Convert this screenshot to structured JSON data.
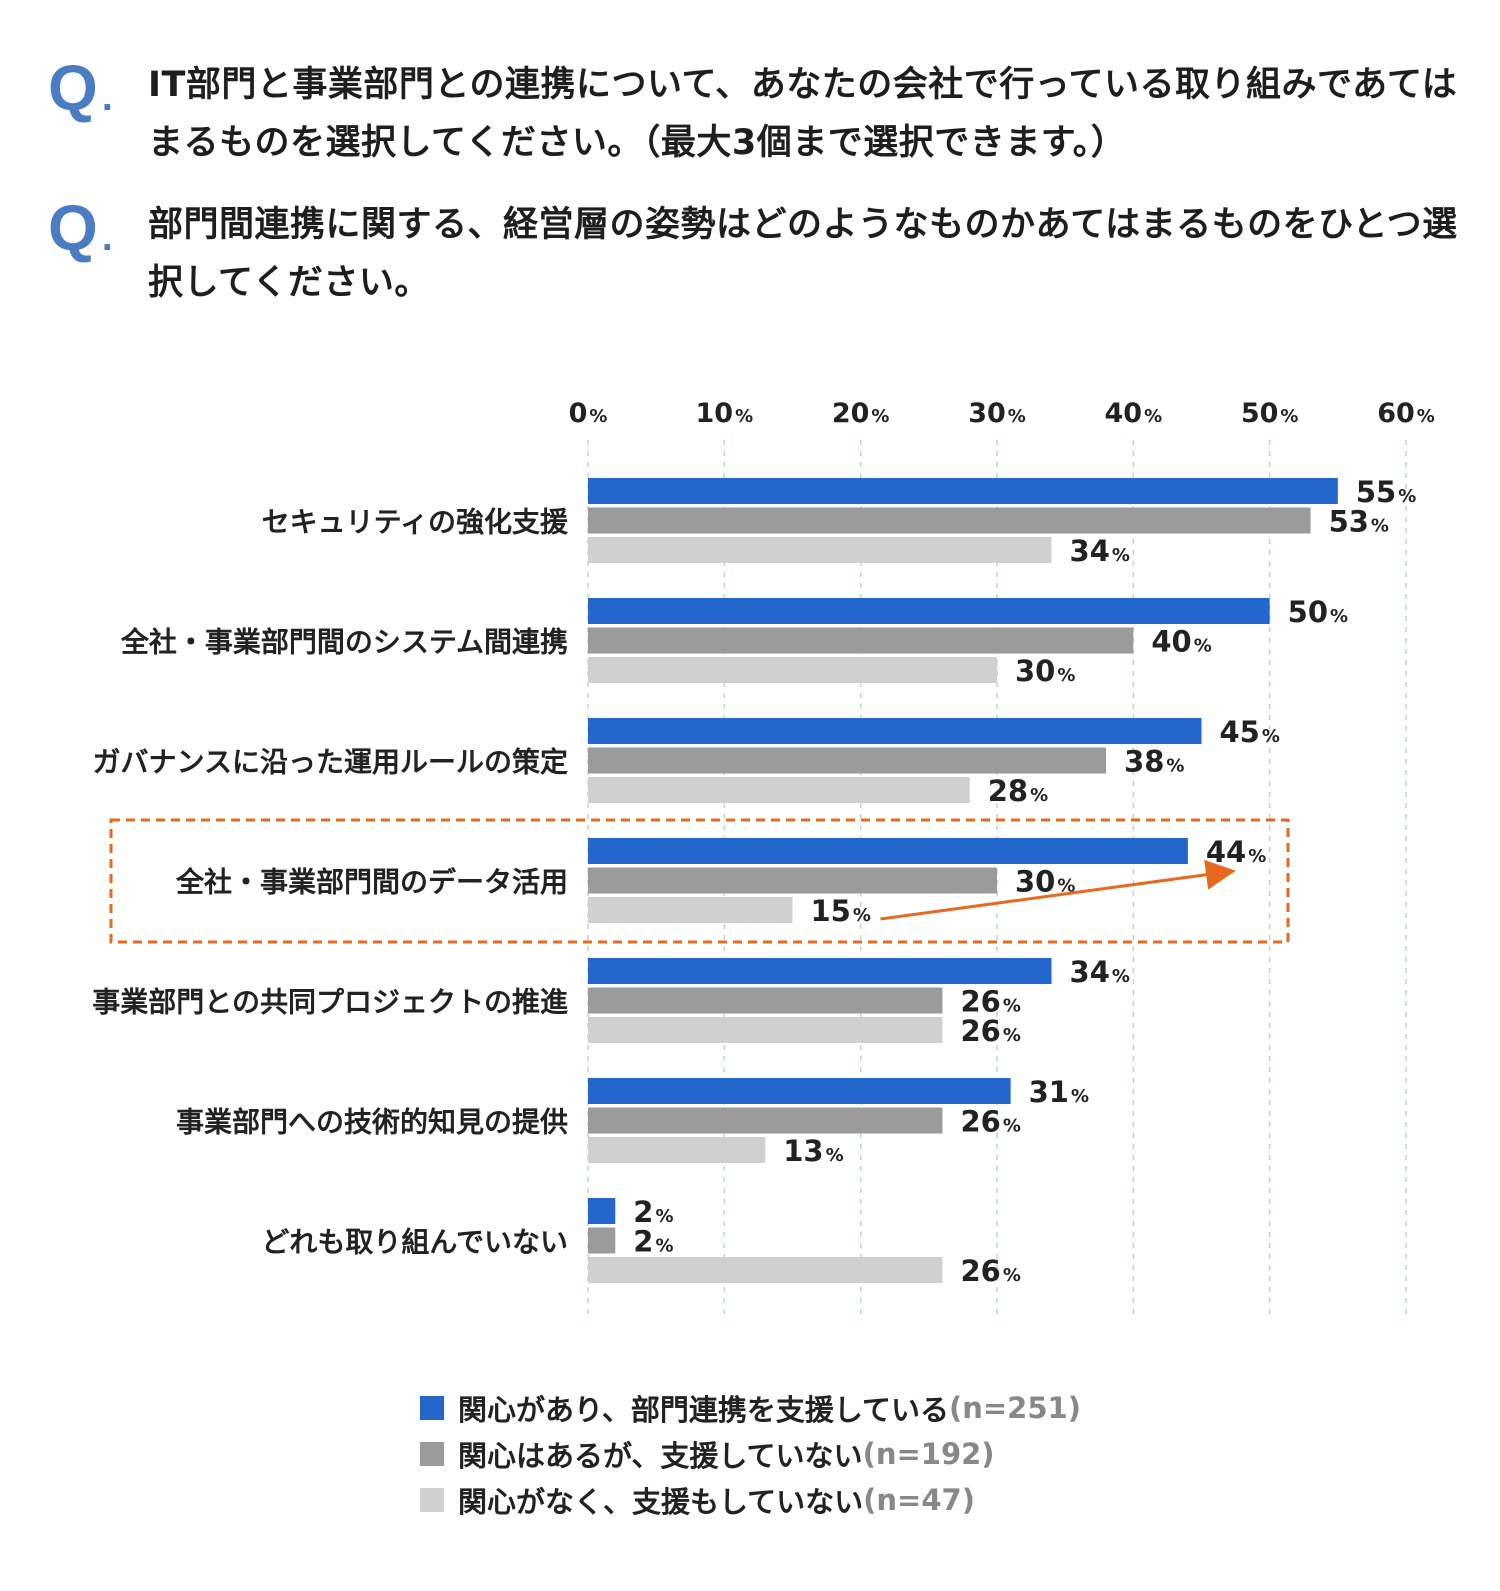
{
  "questions": [
    {
      "mark": "Q",
      "text": "IT部門と事業部門との連携について、あなたの会社で行っている取り組みであてはまるものを選択してください。（最大3個まで選択できます。）"
    },
    {
      "mark": "Q",
      "text": "部門間連携に関する、経営層の姿勢はどのようなものかあてはまるものをひとつ選択してください。"
    }
  ],
  "chart_data": {
    "type": "bar",
    "orientation": "horizontal",
    "categories": [
      "セキュリティの強化支援",
      "全社・事業部門間のシステム間連携",
      "ガバナンスに沿った運用ルールの策定",
      "全社・事業部門間のデータ活用",
      "事業部門との共同プロジェクトの推進",
      "事業部門への技術的知見の提供",
      "どれも取り組んでいない"
    ],
    "series": [
      {
        "name": "関心があり、部門連携を支援している",
        "n": "(n=251)",
        "color": "#2366cc",
        "values": [
          55,
          50,
          45,
          44,
          34,
          31,
          2
        ]
      },
      {
        "name": "関心はあるが、支援していない",
        "n": "(n=192)",
        "color": "#9b9b9b",
        "values": [
          53,
          40,
          38,
          30,
          26,
          26,
          2
        ]
      },
      {
        "name": "関心がなく、支援もしていない",
        "n": "(n=47)",
        "color": "#d0d0d0",
        "values": [
          34,
          30,
          28,
          15,
          26,
          13,
          26
        ]
      }
    ],
    "xlim": [
      0,
      60
    ],
    "ticks": [
      0,
      10,
      20,
      30,
      40,
      50,
      60
    ],
    "tick_unit": "%",
    "value_unit": "%",
    "grid": true,
    "legend_position": "bottom",
    "highlight": {
      "category_index": 3,
      "border_color": "#e8681e",
      "arrow_from_value": 15,
      "arrow_to_value": 44
    }
  }
}
